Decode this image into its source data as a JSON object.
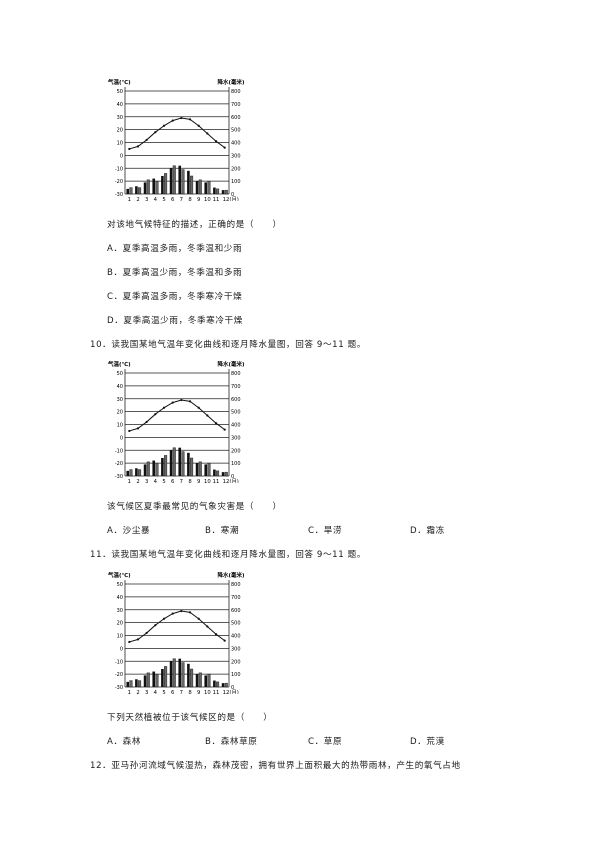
{
  "chart_data": [
    {
      "type": "bar",
      "ylabel": "气温(℃)",
      "y2label": "降水(毫米)",
      "categories": [
        "1",
        "2",
        "3",
        "4",
        "5",
        "6",
        "7",
        "8",
        "9",
        "10",
        "11",
        "12(月)"
      ],
      "y_ticks": [
        "50",
        "40",
        "30",
        "20",
        "10",
        "0",
        "-10",
        "-20",
        "-30"
      ],
      "y2_ticks": [
        "800",
        "700",
        "600",
        "500",
        "400",
        "300",
        "200",
        "100",
        "0"
      ],
      "ylim": [
        -30,
        50
      ],
      "y2lim": [
        0,
        800
      ],
      "temperature": [
        5,
        7,
        12,
        18,
        23,
        27,
        29,
        28,
        23,
        17,
        11,
        6
      ],
      "precipitation": [
        [
          40,
          50
        ],
        [
          60,
          50
        ],
        [
          90,
          110
        ],
        [
          120,
          100
        ],
        [
          140,
          160
        ],
        [
          200,
          220
        ],
        [
          220,
          190
        ],
        [
          180,
          140
        ],
        [
          100,
          110
        ],
        [
          90,
          100
        ],
        [
          50,
          40
        ],
        [
          30,
          30
        ]
      ]
    },
    {
      "type": "bar",
      "ylabel": "气温(℃)",
      "y2label": "降水(毫米)",
      "categories": [
        "1",
        "2",
        "3",
        "4",
        "5",
        "6",
        "7",
        "8",
        "9",
        "10",
        "11",
        "12(月)"
      ],
      "y_ticks": [
        "50",
        "40",
        "30",
        "20",
        "10",
        "0",
        "-10",
        "-20",
        "-30"
      ],
      "y2_ticks": [
        "800",
        "700",
        "600",
        "500",
        "400",
        "300",
        "200",
        "100",
        "0"
      ],
      "ylim": [
        -30,
        50
      ],
      "y2lim": [
        0,
        800
      ],
      "temperature": [
        5,
        7,
        12,
        18,
        23,
        27,
        29,
        28,
        23,
        17,
        11,
        6
      ],
      "precipitation": [
        [
          40,
          50
        ],
        [
          60,
          50
        ],
        [
          90,
          110
        ],
        [
          120,
          100
        ],
        [
          140,
          160
        ],
        [
          200,
          220
        ],
        [
          220,
          190
        ],
        [
          180,
          140
        ],
        [
          100,
          110
        ],
        [
          90,
          100
        ],
        [
          50,
          40
        ],
        [
          30,
          30
        ]
      ]
    },
    {
      "type": "bar",
      "ylabel": "气温(℃)",
      "y2label": "降水(毫米)",
      "categories": [
        "1",
        "2",
        "3",
        "4",
        "5",
        "6",
        "7",
        "8",
        "9",
        "10",
        "11",
        "12(月)"
      ],
      "y_ticks": [
        "50",
        "40",
        "30",
        "20",
        "10",
        "0",
        "-10",
        "-20",
        "-30"
      ],
      "y2_ticks": [
        "800",
        "700",
        "600",
        "500",
        "400",
        "300",
        "200",
        "100",
        "0"
      ],
      "ylim": [
        -30,
        50
      ],
      "y2lim": [
        0,
        800
      ],
      "temperature": [
        5,
        7,
        12,
        18,
        23,
        27,
        29,
        28,
        23,
        17,
        11,
        6
      ],
      "precipitation": [
        [
          40,
          50
        ],
        [
          60,
          50
        ],
        [
          90,
          110
        ],
        [
          120,
          100
        ],
        [
          140,
          160
        ],
        [
          200,
          220
        ],
        [
          220,
          190
        ],
        [
          180,
          140
        ],
        [
          100,
          110
        ],
        [
          90,
          100
        ],
        [
          50,
          40
        ],
        [
          30,
          30
        ]
      ]
    }
  ],
  "q9": {
    "stem": "对该地气候特征的描述，正确的是（　　）",
    "a": "A．夏季高温多雨，冬季温和少雨",
    "b": "B．夏季高温少雨，冬季温和多雨",
    "c": "C．夏季高温多雨，冬季寒冷干燥",
    "d": "D．夏季高温少雨，冬季寒冷干燥"
  },
  "q10": {
    "intro": "10．读我国某地气温年变化曲线和逐月降水量图，回答 9～11 题。",
    "stem": "该气候区夏季最常见的气象灾害是（　　）",
    "a": "A．沙尘暴",
    "b": "B．寒潮",
    "c": "C．旱涝",
    "d": "D．霜冻"
  },
  "q11": {
    "intro": "11．读我国某地气温年变化曲线和逐月降水量图，回答 9～11 题。",
    "stem": "下列天然植被位于该气候区的是（　　）",
    "a": "A．森林",
    "b": "B．森林草原",
    "c": "C．草原",
    "d": "D．荒漠"
  },
  "q12": {
    "intro": "12．亚马孙河流域气候湿热，森林茂密，拥有世界上面积最大的热带雨林，产生的氧气占地"
  }
}
